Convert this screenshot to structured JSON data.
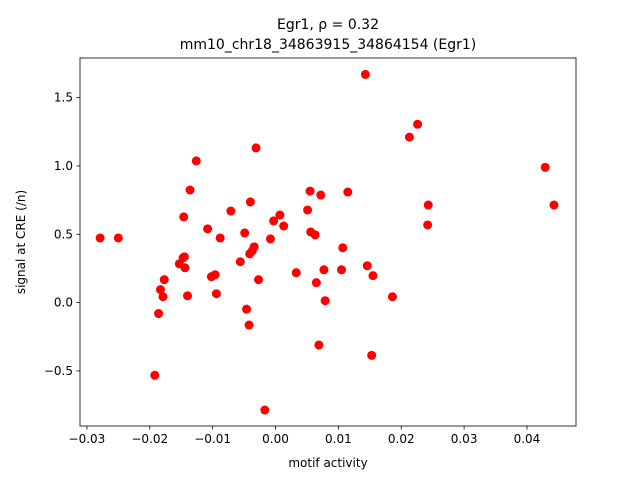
{
  "chart_data": {
    "type": "scatter",
    "title_line1": "Egr1, ρ = 0.32",
    "title_line2": "mm10_chr18_34863915_34864154 (Egr1)",
    "xlabel": "motif activity",
    "ylabel": "signal at CRE (/n)",
    "xlim": [
      -0.0311,
      0.0478
    ],
    "ylim": [
      -0.903,
      1.79
    ],
    "xticks": [
      -0.03,
      -0.02,
      -0.01,
      0.0,
      0.01,
      0.02,
      0.03,
      0.04
    ],
    "xtick_labels": [
      "−0.03",
      "−0.02",
      "−0.01",
      "0.00",
      "0.01",
      "0.02",
      "0.03",
      "0.04"
    ],
    "yticks": [
      -0.5,
      0.0,
      0.5,
      1.0,
      1.5
    ],
    "ytick_labels": [
      "−0.5",
      "0.0",
      "0.5",
      "1.0",
      "1.5"
    ],
    "grid": false,
    "marker_color": "#ff0000",
    "points": [
      {
        "x": -0.0279,
        "y": 0.473
      },
      {
        "x": -0.025,
        "y": 0.473
      },
      {
        "x": -0.0192,
        "y": -0.532
      },
      {
        "x": -0.0186,
        "y": -0.08
      },
      {
        "x": -0.0183,
        "y": 0.095
      },
      {
        "x": -0.0179,
        "y": 0.043
      },
      {
        "x": -0.0177,
        "y": 0.168
      },
      {
        "x": -0.0153,
        "y": 0.284
      },
      {
        "x": -0.0147,
        "y": 0.328
      },
      {
        "x": -0.0146,
        "y": 0.627
      },
      {
        "x": -0.0145,
        "y": 0.335
      },
      {
        "x": -0.0144,
        "y": 0.255
      },
      {
        "x": -0.014,
        "y": 0.05
      },
      {
        "x": -0.0136,
        "y": 0.824
      },
      {
        "x": -0.0126,
        "y": 1.037
      },
      {
        "x": -0.0108,
        "y": 0.54
      },
      {
        "x": -0.0102,
        "y": 0.19
      },
      {
        "x": -0.0096,
        "y": 0.204
      },
      {
        "x": -0.0094,
        "y": 0.065
      },
      {
        "x": -0.0088,
        "y": 0.473
      },
      {
        "x": -0.0071,
        "y": 0.67
      },
      {
        "x": -0.0056,
        "y": 0.299
      },
      {
        "x": -0.0049,
        "y": 0.51
      },
      {
        "x": -0.0046,
        "y": -0.048
      },
      {
        "x": -0.0042,
        "y": -0.164
      },
      {
        "x": -0.0041,
        "y": 0.357
      },
      {
        "x": -0.004,
        "y": 0.737
      },
      {
        "x": -0.0037,
        "y": 0.379
      },
      {
        "x": -0.0034,
        "y": 0.408
      },
      {
        "x": -0.0031,
        "y": 1.132
      },
      {
        "x": -0.0027,
        "y": 0.168
      },
      {
        "x": -0.0017,
        "y": -0.786
      },
      {
        "x": -0.0008,
        "y": 0.466
      },
      {
        "x": -0.0003,
        "y": 0.598
      },
      {
        "x": 0.0007,
        "y": 0.641
      },
      {
        "x": 0.0013,
        "y": 0.561
      },
      {
        "x": 0.0033,
        "y": 0.219
      },
      {
        "x": 0.0051,
        "y": 0.678
      },
      {
        "x": 0.0055,
        "y": 0.816
      },
      {
        "x": 0.0056,
        "y": 0.517
      },
      {
        "x": 0.0063,
        "y": 0.496
      },
      {
        "x": 0.0065,
        "y": 0.146
      },
      {
        "x": 0.0069,
        "y": -0.31
      },
      {
        "x": 0.0072,
        "y": 0.787
      },
      {
        "x": 0.0077,
        "y": 0.24
      },
      {
        "x": 0.0079,
        "y": 0.014
      },
      {
        "x": 0.0105,
        "y": 0.24
      },
      {
        "x": 0.0107,
        "y": 0.401
      },
      {
        "x": 0.0115,
        "y": 0.809
      },
      {
        "x": 0.0143,
        "y": 1.67
      },
      {
        "x": 0.0146,
        "y": 0.27
      },
      {
        "x": 0.0153,
        "y": -0.386
      },
      {
        "x": 0.0155,
        "y": 0.197
      },
      {
        "x": 0.0186,
        "y": 0.043
      },
      {
        "x": 0.0213,
        "y": 1.211
      },
      {
        "x": 0.0226,
        "y": 1.305
      },
      {
        "x": 0.0242,
        "y": 0.568
      },
      {
        "x": 0.0243,
        "y": 0.714
      },
      {
        "x": 0.0429,
        "y": 0.99
      },
      {
        "x": 0.0443,
        "y": 0.714
      }
    ]
  }
}
